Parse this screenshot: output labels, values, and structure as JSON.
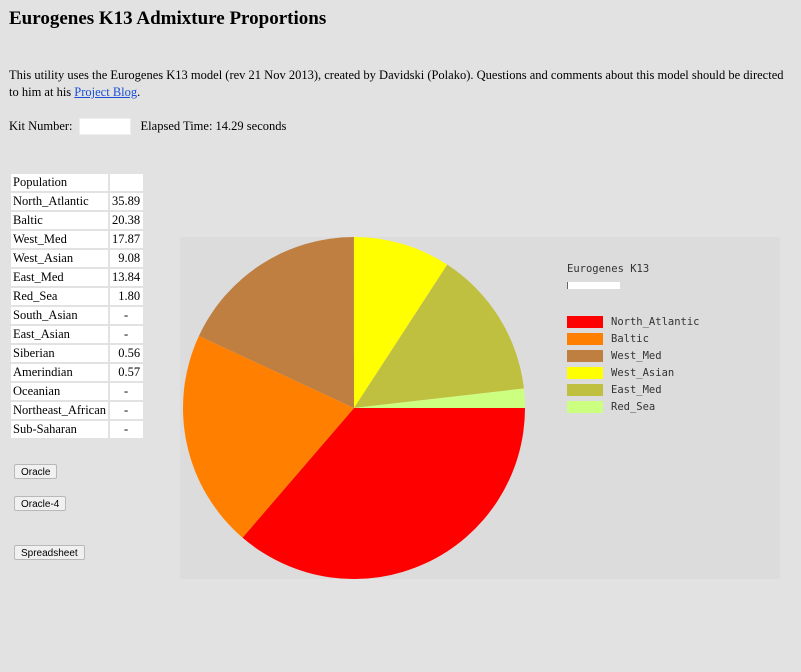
{
  "page": {
    "title": "Eurogenes K13 Admixture Proportions",
    "intro_text": "This utility uses the Eurogenes K13 model (rev 21 Nov 2013), created by Davidski (Polako). Questions and comments about this model should be directed to him at his ",
    "intro_link": "Project Blog",
    "intro_end": ".",
    "kit_label": "Kit Number:",
    "kit_value": "",
    "elapsed_text": "Elapsed Time: 14.29 seconds"
  },
  "table": {
    "header": "Population",
    "rows": [
      {
        "name": "North_Atlantic",
        "value": "35.89"
      },
      {
        "name": "Baltic",
        "value": "20.38"
      },
      {
        "name": "West_Med",
        "value": "17.87"
      },
      {
        "name": "West_Asian",
        "value": "9.08"
      },
      {
        "name": "East_Med",
        "value": "13.84"
      },
      {
        "name": "Red_Sea",
        "value": "1.80"
      },
      {
        "name": "South_Asian",
        "value": "-"
      },
      {
        "name": "East_Asian",
        "value": "-"
      },
      {
        "name": "Siberian",
        "value": "0.56"
      },
      {
        "name": "Amerindian",
        "value": "0.57"
      },
      {
        "name": "Oceanian",
        "value": "-"
      },
      {
        "name": "Northeast_African",
        "value": "-"
      },
      {
        "name": "Sub-Saharan",
        "value": "-"
      }
    ]
  },
  "buttons": {
    "oracle": "Oracle",
    "oracle4": "Oracle-4",
    "spreadsheet": "Spreadsheet"
  },
  "chart_data": {
    "type": "pie",
    "title": "Eurogenes K13",
    "legend_position": "right",
    "slices": [
      {
        "label": "North_Atlantic",
        "value": 35.89,
        "color": "#ff0000"
      },
      {
        "label": "Baltic",
        "value": 20.38,
        "color": "#ff8000"
      },
      {
        "label": "West_Med",
        "value": 17.87,
        "color": "#bf7f40"
      },
      {
        "label": "West_Asian",
        "value": 9.08,
        "color": "#ffff00"
      },
      {
        "label": "East_Med",
        "value": 13.84,
        "color": "#bfbf40"
      },
      {
        "label": "Red_Sea",
        "value": 1.8,
        "color": "#ccff80"
      }
    ]
  }
}
